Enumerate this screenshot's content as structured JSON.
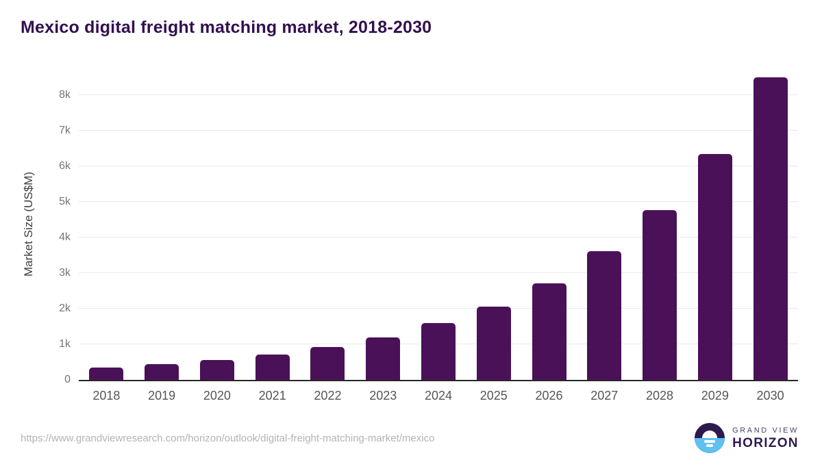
{
  "title": "Mexico digital freight matching market, 2018-2030",
  "source_url": "https://www.grandviewresearch.com/horizon/outlook/digital-freight-matching-market/mexico",
  "logo": {
    "brand_top": "GRAND VIEW",
    "brand_bottom": "HORIZON",
    "icon": "horizon-sun-icon"
  },
  "colors": {
    "bar": "#4a1158",
    "title": "#320f4f",
    "gridline": "#e9e9e9",
    "axis_line": "#262626",
    "tick_label": "#757575",
    "x_label": "#555555",
    "url_text": "#b3b3b3",
    "logo_purple": "#2e1a4e",
    "logo_blue": "#5ec1ef"
  },
  "chart_data": {
    "type": "bar",
    "title": "Mexico digital freight matching market, 2018-2030",
    "xlabel": "",
    "ylabel": "Market Size (US$M)",
    "categories": [
      "2018",
      "2019",
      "2020",
      "2021",
      "2022",
      "2023",
      "2024",
      "2025",
      "2026",
      "2027",
      "2028",
      "2029",
      "2030"
    ],
    "values": [
      350,
      445,
      555,
      705,
      930,
      1200,
      1590,
      2060,
      2710,
      3610,
      4765,
      6345,
      8500
    ],
    "ylim": [
      0,
      8800
    ],
    "yticks": [
      0,
      1000,
      2000,
      3000,
      4000,
      5000,
      6000,
      7000,
      8000
    ],
    "ytick_labels": [
      "0",
      "1k",
      "2k",
      "3k",
      "4k",
      "5k",
      "6k",
      "7k",
      "8k"
    ],
    "grid": "horizontal",
    "legend": "none",
    "bar_color": "#4a1158"
  }
}
